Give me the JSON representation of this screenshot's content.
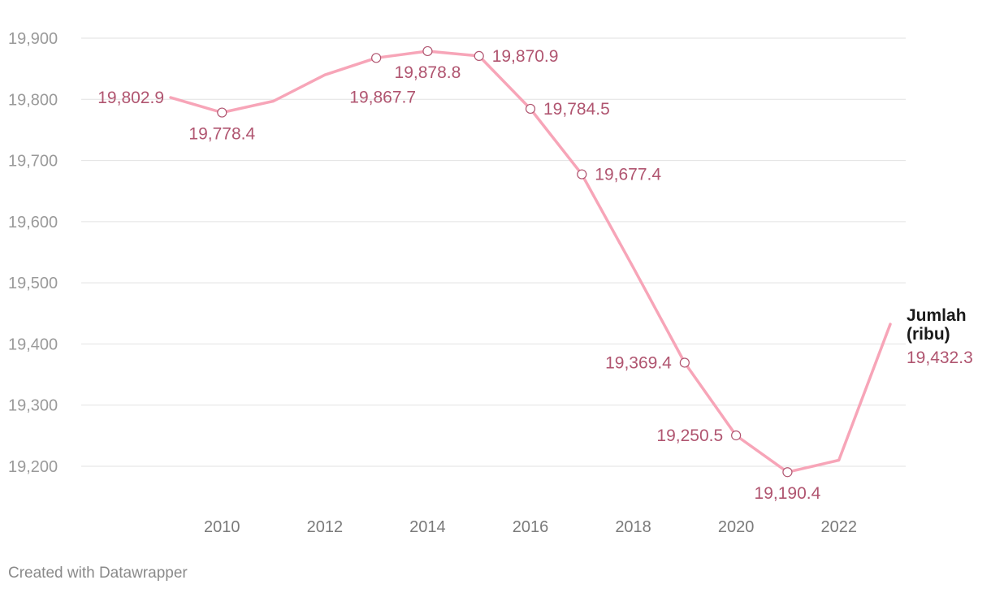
{
  "chart_data": {
    "type": "line",
    "x": [
      2009,
      2010,
      2011,
      2012,
      2013,
      2014,
      2015,
      2016,
      2017,
      2018,
      2019,
      2020,
      2021,
      2022,
      2023
    ],
    "series": [
      {
        "name": "Jumlah (ribu)",
        "name_lines": [
          "Jumlah",
          "(ribu)"
        ],
        "values": [
          19802.9,
          19778.4,
          19797.0,
          19840.0,
          19867.7,
          19878.8,
          19870.9,
          19784.5,
          19677.4,
          19525.0,
          19369.4,
          19250.5,
          19190.4,
          19210.0,
          19432.3
        ],
        "color": "#f7a5b8"
      }
    ],
    "labels": [
      {
        "x": 2009,
        "text": "19,802.9"
      },
      {
        "x": 2010,
        "text": "19,778.4"
      },
      {
        "x": 2013,
        "text": "19,867.7"
      },
      {
        "x": 2014,
        "text": "19,878.8"
      },
      {
        "x": 2015,
        "text": "19,870.9"
      },
      {
        "x": 2016,
        "text": "19,784.5"
      },
      {
        "x": 2017,
        "text": "19,677.4"
      },
      {
        "x": 2019,
        "text": "19,369.4"
      },
      {
        "x": 2020,
        "text": "19,250.5"
      },
      {
        "x": 2021,
        "text": "19,190.4"
      },
      {
        "x": 2023,
        "text": "19,432.3"
      }
    ],
    "markers": [
      2010,
      2013,
      2014,
      2015,
      2016,
      2017,
      2019,
      2020,
      2021
    ],
    "label_color": "#b05570",
    "yticks": [
      19200,
      19300,
      19400,
      19500,
      19600,
      19700,
      19800,
      19900
    ],
    "ytick_labels": [
      "19,200",
      "19,300",
      "19,400",
      "19,500",
      "19,600",
      "19,700",
      "19,800",
      "19,900"
    ],
    "xticks": [
      2010,
      2012,
      2014,
      2016,
      2018,
      2020,
      2022
    ],
    "xtick_labels": [
      "2010",
      "2012",
      "2014",
      "2016",
      "2018",
      "2020",
      "2022"
    ],
    "ylim": [
      19200,
      19900
    ],
    "grid": true,
    "title": "",
    "xlabel": "",
    "ylabel": ""
  },
  "footer": {
    "credit": "Created with Datawrapper"
  }
}
